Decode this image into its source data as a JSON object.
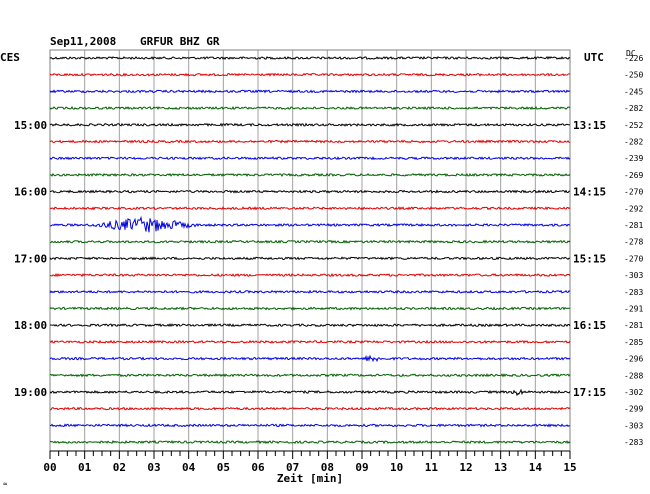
{
  "header": {
    "date": "Sep11,2008",
    "station": "GRFUR BHZ GR",
    "left_label": "CES",
    "right_label": "UTC",
    "dc_label": "DC"
  },
  "chart_data": {
    "type": "line",
    "title": "Sep11,2008   GRFUR BHZ GR",
    "xlabel": "Zeit [min]",
    "x_ticks": [
      "00",
      "01",
      "02",
      "03",
      "04",
      "05",
      "06",
      "07",
      "08",
      "09",
      "10",
      "11",
      "12",
      "13",
      "14",
      "15"
    ],
    "xlim": [
      0,
      15
    ],
    "colors": [
      "#000000",
      "#e00000",
      "#0000e0",
      "#006000"
    ],
    "left_time_labels": [
      {
        "row": 4,
        "label": "15:00"
      },
      {
        "row": 8,
        "label": "16:00"
      },
      {
        "row": 12,
        "label": "17:00"
      },
      {
        "row": 16,
        "label": "18:00"
      },
      {
        "row": 20,
        "label": "19:00"
      }
    ],
    "right_time_labels": [
      {
        "row": 4,
        "label": "13:15"
      },
      {
        "row": 8,
        "label": "14:15"
      },
      {
        "row": 12,
        "label": "15:15"
      },
      {
        "row": 16,
        "label": "16:15"
      },
      {
        "row": 20,
        "label": "17:15"
      }
    ],
    "dc_offsets": [
      "-226",
      "-250",
      "-245",
      "-282",
      "-252",
      "-282",
      "-239",
      "-269",
      "-270",
      "-292",
      "-281",
      "-278",
      "-270",
      "-303",
      "-283",
      "-291",
      "-281",
      "-285",
      "-296",
      "-288",
      "-302",
      "-299",
      "-303",
      "-283"
    ],
    "events": [
      {
        "row": 10,
        "start_min": 1.2,
        "end_min": 4.3,
        "peak_min": 2.7,
        "amplitude": 7
      },
      {
        "row": 18,
        "start_min": 9.1,
        "end_min": 9.6,
        "peak_min": 9.3,
        "amplitude": 3
      },
      {
        "row": 20,
        "start_min": 13.3,
        "end_min": 13.7,
        "peak_min": 13.5,
        "amplitude": 3
      }
    ]
  }
}
